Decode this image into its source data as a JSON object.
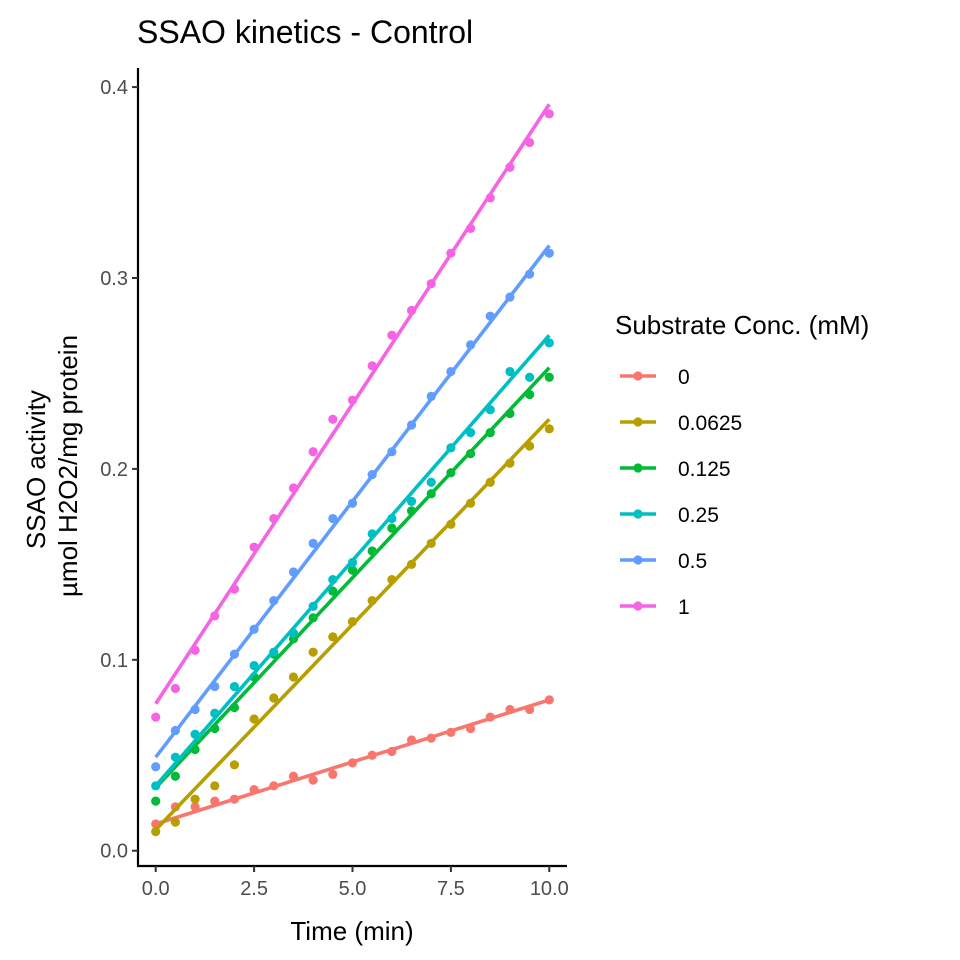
{
  "chart_data": {
    "type": "scatter",
    "title": "SSAO kinetics - Control",
    "xlabel": "Time (min)",
    "ylabel_lines": [
      "SSAO activity",
      "µmol H2O2/mg protein"
    ],
    "xlim": [
      -0.45,
      10.45
    ],
    "ylim": [
      -0.008,
      0.41
    ],
    "x_ticks": [
      0,
      2.5,
      5,
      7.5,
      10
    ],
    "x_tick_labels": [
      "0.0",
      "2.5",
      "5.0",
      "7.5",
      "10.0"
    ],
    "y_ticks": [
      0,
      0.1,
      0.2,
      0.3,
      0.4
    ],
    "y_tick_labels": [
      "0.0",
      "0.1",
      "0.2",
      "0.3",
      "0.4"
    ],
    "grid": false,
    "legend": {
      "title": "Substrate Conc. (mM)",
      "position": "right"
    },
    "x": [
      0,
      0.5,
      1,
      1.5,
      2,
      2.5,
      3,
      3.5,
      4,
      4.5,
      5,
      5.5,
      6,
      6.5,
      7,
      7.5,
      8,
      8.5,
      9,
      9.5,
      10
    ],
    "series": [
      {
        "name": "0",
        "color": "#F8766D",
        "values": [
          0.014,
          0.023,
          0.023,
          0.026,
          0.027,
          0.032,
          0.034,
          0.039,
          0.037,
          0.04,
          0.046,
          0.05,
          0.052,
          0.058,
          0.059,
          0.062,
          0.064,
          0.07,
          0.074,
          0.074,
          0.079
        ],
        "fit": [
          0.014,
          0.079
        ]
      },
      {
        "name": "0.0625",
        "color": "#B79F00",
        "values": [
          0.01,
          0.015,
          0.027,
          0.034,
          0.045,
          0.069,
          0.08,
          0.091,
          0.104,
          0.112,
          0.12,
          0.131,
          0.142,
          0.15,
          0.161,
          0.171,
          0.182,
          0.193,
          0.203,
          0.212,
          0.221
        ],
        "fit": [
          0.011,
          0.226
        ]
      },
      {
        "name": "0.125",
        "color": "#00BA38",
        "values": [
          0.026,
          0.039,
          0.053,
          0.064,
          0.075,
          0.091,
          0.103,
          0.111,
          0.122,
          0.136,
          0.147,
          0.157,
          0.169,
          0.178,
          0.187,
          0.198,
          0.208,
          0.219,
          0.229,
          0.239,
          0.248
        ],
        "fit": [
          0.033,
          0.253
        ]
      },
      {
        "name": "0.25",
        "color": "#00BFC4",
        "values": [
          0.034,
          0.049,
          0.061,
          0.072,
          0.086,
          0.097,
          0.104,
          0.114,
          0.128,
          0.142,
          0.151,
          0.166,
          0.174,
          0.183,
          0.193,
          0.211,
          0.219,
          0.231,
          0.251,
          0.248,
          0.266
        ],
        "fit": [
          0.034,
          0.27
        ]
      },
      {
        "name": "0.5",
        "color": "#619CFF",
        "values": [
          0.044,
          0.063,
          0.074,
          0.086,
          0.103,
          0.116,
          0.131,
          0.146,
          0.161,
          0.174,
          0.182,
          0.197,
          0.209,
          0.223,
          0.238,
          0.251,
          0.265,
          0.28,
          0.29,
          0.302,
          0.313
        ],
        "fit": [
          0.049,
          0.317
        ]
      },
      {
        "name": "1",
        "color": "#F564E3",
        "values": [
          0.07,
          0.085,
          0.105,
          0.123,
          0.137,
          0.159,
          0.174,
          0.19,
          0.209,
          0.226,
          0.236,
          0.254,
          0.27,
          0.283,
          0.297,
          0.313,
          0.326,
          0.342,
          0.358,
          0.371,
          0.386
        ],
        "fit": [
          0.077,
          0.391
        ]
      }
    ]
  }
}
